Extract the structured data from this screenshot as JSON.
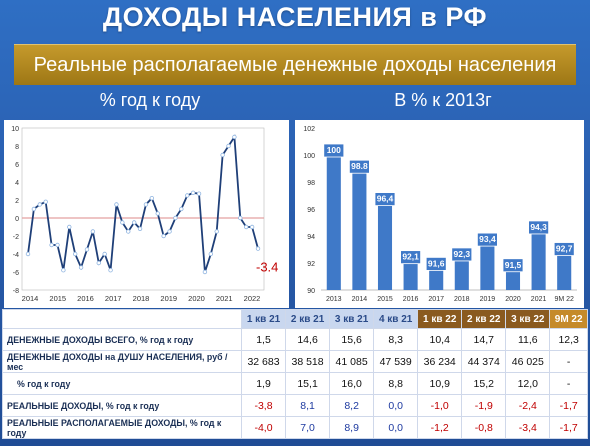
{
  "title": "ДОХОДЫ НАСЕЛЕНИЯ в РФ",
  "banner": "Реальные располагаемые денежные доходы населения",
  "left_subtitle": "% год к году",
  "right_subtitle": "В % к 2013г",
  "colors": {
    "background": "#2a5fb0",
    "banner": "#b58a22",
    "line": "#1f3f78",
    "bar": "#3f79c8",
    "bar_label_bg": "#3f79c8",
    "negative": "#c00000",
    "positive": "#1e3aa0",
    "zero_line": "#e4a0a0"
  },
  "chart_data": [
    {
      "type": "line",
      "title": "% год к году",
      "x_ticks": [
        "2014",
        "2015",
        "2016",
        "2017",
        "2018",
        "2019",
        "2020",
        "2021",
        "2022"
      ],
      "ylim": [
        -8,
        10
      ],
      "y_ticks": [
        10,
        8,
        6,
        4,
        2,
        0,
        -2,
        -4,
        -6,
        -8
      ],
      "zero_line": true,
      "series": [
        {
          "values": [
            -4.0,
            1.0,
            1.5,
            1.8,
            -3.0,
            -3.0,
            -5.8,
            -1.0,
            -4.0,
            -5.5,
            -3.5,
            -1.5,
            -5.0,
            -4.0,
            -5.8,
            1.5,
            -0.5,
            -1.5,
            -0.5,
            -1.2,
            1.5,
            2.2,
            0.5,
            -2.0,
            -1.5,
            0.0,
            1.0,
            2.5,
            2.8,
            2.7,
            -6.0,
            -4.0,
            -1.5,
            7.0,
            8.0,
            9.0,
            0.0,
            -1.0,
            -1.0,
            -3.4
          ]
        }
      ],
      "annotation": "-3.4"
    },
    {
      "type": "bar",
      "title": "В % к 2013г",
      "categories": [
        "2013",
        "2014",
        "2015",
        "2016",
        "2017",
        "2018",
        "2019",
        "2020",
        "2021",
        "9М 22"
      ],
      "values": [
        100,
        98.8,
        96.4,
        92.1,
        91.6,
        92.3,
        93.4,
        91.5,
        94.3,
        92.7
      ],
      "value_labels": [
        "100",
        "98.8",
        "96,4",
        "92,1",
        "91,6",
        "92,3",
        "93,4",
        "91,5",
        "94,3",
        "92,7"
      ],
      "ylim": [
        90,
        102
      ],
      "y_ticks": [
        102,
        100,
        98,
        96,
        94,
        92,
        90
      ]
    }
  ],
  "table": {
    "headers": [
      "1 кв 21",
      "2 кв 21",
      "3 кв 21",
      "4 кв 21",
      "1 кв 22",
      "2 кв 22",
      "3 кв 22",
      "9М 22"
    ],
    "rows": [
      {
        "label": "ДЕНЕЖНЫЕ ДОХОДЫ ВСЕГО, % год к году",
        "values": [
          "1,5",
          "14,6",
          "15,6",
          "8,3",
          "10,4",
          "14,7",
          "11,6",
          "12,3"
        ]
      },
      {
        "label": "ДЕНЕЖНЫЕ ДОХОДЫ на ДУШУ НАСЕЛЕНИЯ, руб / мес",
        "values": [
          "32 683",
          "38 518",
          "41 085",
          "47 539",
          "36 234",
          "44 374",
          "46 025",
          "-"
        ]
      },
      {
        "label": "% год к году",
        "values": [
          "1,9",
          "15,1",
          "16,0",
          "8,8",
          "10,9",
          "15,2",
          "12,0",
          "-"
        ]
      },
      {
        "label": "РЕАЛЬНЫЕ ДОХОДЫ, % год к году",
        "values": [
          "-3,8",
          "8,1",
          "8,2",
          "0,0",
          "-1,0",
          "-1,9",
          "-2,4",
          "-1,7"
        ]
      },
      {
        "label": "РЕАЛЬНЫЕ РАСПОЛАГАЕМЫЕ ДОХОДЫ, % год к году",
        "values": [
          "-4,0",
          "7,0",
          "8,9",
          "0,0",
          "-1,2",
          "-0,8",
          "-3,4",
          "-1,7"
        ]
      }
    ]
  }
}
